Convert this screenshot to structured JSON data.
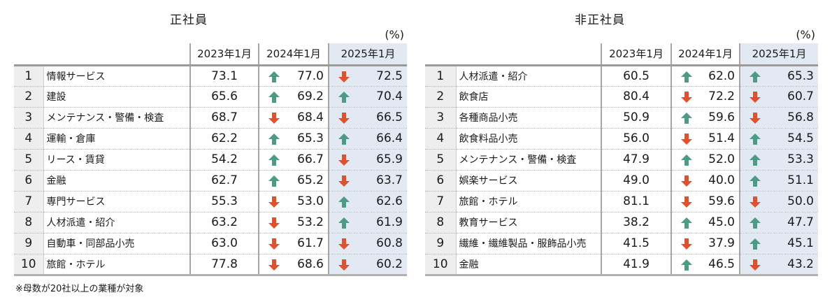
{
  "regular": {
    "title": "正社員",
    "unit": "(%)",
    "headers": [
      "2023年1月",
      "2024年1月",
      "2025年1月"
    ],
    "rows": [
      {
        "rank": "1",
        "industry": "情報サービス",
        "y2023": "73.1",
        "y2024": "77.0",
        "t2024": "up",
        "y2025": "72.5",
        "t2025": "down"
      },
      {
        "rank": "2",
        "industry": "建設",
        "y2023": "65.6",
        "y2024": "69.2",
        "t2024": "up",
        "y2025": "70.4",
        "t2025": "up"
      },
      {
        "rank": "3",
        "industry": "メンテナンス・警備・検査",
        "y2023": "68.7",
        "y2024": "68.4",
        "t2024": "down",
        "y2025": "66.5",
        "t2025": "down"
      },
      {
        "rank": "4",
        "industry": "運輸・倉庫",
        "y2023": "62.2",
        "y2024": "65.3",
        "t2024": "up",
        "y2025": "66.4",
        "t2025": "up"
      },
      {
        "rank": "5",
        "industry": "リース・賃貸",
        "y2023": "54.2",
        "y2024": "66.7",
        "t2024": "up",
        "y2025": "65.9",
        "t2025": "down"
      },
      {
        "rank": "6",
        "industry": "金融",
        "y2023": "62.7",
        "y2024": "65.2",
        "t2024": "up",
        "y2025": "63.7",
        "t2025": "down"
      },
      {
        "rank": "7",
        "industry": "専門サービス",
        "y2023": "55.3",
        "y2024": "53.0",
        "t2024": "down",
        "y2025": "62.6",
        "t2025": "up"
      },
      {
        "rank": "8",
        "industry": "人材派遣・紹介",
        "y2023": "63.2",
        "y2024": "53.2",
        "t2024": "down",
        "y2025": "61.9",
        "t2025": "up"
      },
      {
        "rank": "9",
        "industry": "自動車・同部品小売",
        "y2023": "63.0",
        "y2024": "61.7",
        "t2024": "down",
        "y2025": "60.8",
        "t2025": "down"
      },
      {
        "rank": "10",
        "industry": "旅館・ホテル",
        "y2023": "77.8",
        "y2024": "68.6",
        "t2024": "down",
        "y2025": "60.2",
        "t2025": "down"
      }
    ]
  },
  "nonregular": {
    "title": "非正社員",
    "unit": "(%)",
    "headers": [
      "2023年1月",
      "2024年1月",
      "2025年1月"
    ],
    "rows": [
      {
        "rank": "1",
        "industry": "人材派遣・紹介",
        "y2023": "60.5",
        "y2024": "62.0",
        "t2024": "up",
        "y2025": "65.3",
        "t2025": "up"
      },
      {
        "rank": "2",
        "industry": "飲食店",
        "y2023": "80.4",
        "y2024": "72.2",
        "t2024": "down",
        "y2025": "60.7",
        "t2025": "down"
      },
      {
        "rank": "3",
        "industry": "各種商品小売",
        "y2023": "50.9",
        "y2024": "59.6",
        "t2024": "up",
        "y2025": "56.8",
        "t2025": "down"
      },
      {
        "rank": "4",
        "industry": "飲食料品小売",
        "y2023": "56.0",
        "y2024": "51.4",
        "t2024": "down",
        "y2025": "54.5",
        "t2025": "up"
      },
      {
        "rank": "5",
        "industry": "メンテナンス・警備・検査",
        "y2023": "47.9",
        "y2024": "52.0",
        "t2024": "up",
        "y2025": "53.3",
        "t2025": "up"
      },
      {
        "rank": "6",
        "industry": "娯楽サービス",
        "y2023": "49.0",
        "y2024": "40.0",
        "t2024": "down",
        "y2025": "51.1",
        "t2025": "up"
      },
      {
        "rank": "7",
        "industry": "旅館・ホテル",
        "y2023": "81.1",
        "y2024": "59.6",
        "t2024": "down",
        "y2025": "50.0",
        "t2025": "down"
      },
      {
        "rank": "8",
        "industry": "教育サービス",
        "y2023": "38.2",
        "y2024": "45.0",
        "t2024": "up",
        "y2025": "47.7",
        "t2025": "up"
      },
      {
        "rank": "9",
        "industry": "繊維・繊維製品・服飾品小売",
        "y2023": "41.5",
        "y2024": "37.9",
        "t2024": "down",
        "y2025": "45.1",
        "t2025": "up"
      },
      {
        "rank": "10",
        "industry": "金融",
        "y2023": "41.9",
        "y2024": "46.5",
        "t2024": "up",
        "y2025": "43.2",
        "t2025": "down"
      }
    ]
  },
  "footnote": "※母数が20社以上の業種が対象",
  "colors": {
    "up_arrow": "#4e9a85",
    "down_arrow": "#e0502c",
    "highlight_column": "#e3e9f3",
    "rank_column": "#eeeeee"
  },
  "icons": {
    "up": "arrow-up-icon",
    "down": "arrow-down-icon"
  }
}
